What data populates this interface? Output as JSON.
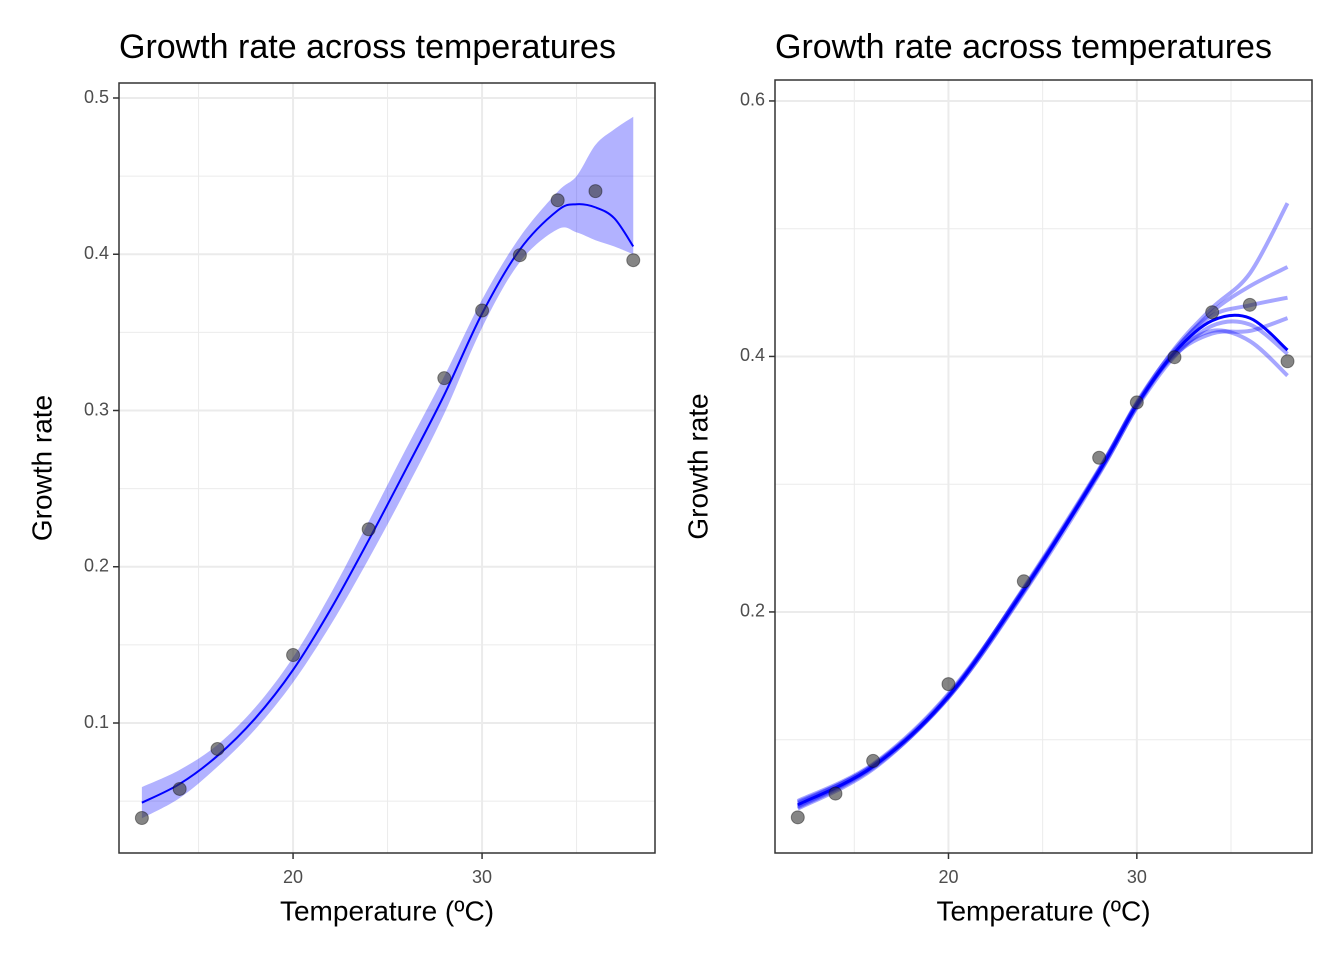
{
  "chart_data": [
    {
      "type": "line",
      "title": "Growth rate across temperatures",
      "xlabel": "Temperature (ºC)",
      "ylabel": "Growth rate",
      "xlim": [
        10.79,
        39.15
      ],
      "ylim": [
        0.0168,
        0.5096
      ],
      "xticks": [
        20,
        30
      ],
      "yticks": [
        0.1,
        0.2,
        0.3,
        0.4,
        0.5
      ],
      "grid": true,
      "points": {
        "color": "#333333",
        "x": [
          12,
          14,
          16,
          20,
          24,
          28,
          30,
          32,
          34,
          36,
          38
        ],
        "y": [
          0.0392,
          0.0578,
          0.0834,
          0.1435,
          0.224,
          0.3207,
          0.364,
          0.3994,
          0.4346,
          0.4404,
          0.3962
        ]
      },
      "fit": {
        "color": "#0000ff",
        "x": [
          12,
          14,
          16,
          18,
          20,
          22,
          24,
          26,
          28,
          30,
          32,
          34,
          35,
          36,
          37,
          38
        ],
        "values": [
          0.049,
          0.061,
          0.079,
          0.103,
          0.134,
          0.173,
          0.217,
          0.263,
          0.31,
          0.362,
          0.403,
          0.428,
          0.432,
          0.43,
          0.423,
          0.405
        ],
        "lower": [
          0.039,
          0.052,
          0.072,
          0.096,
          0.126,
          0.163,
          0.205,
          0.25,
          0.298,
          0.353,
          0.395,
          0.416,
          0.414,
          0.409,
          0.405,
          0.4
        ],
        "upper": [
          0.059,
          0.07,
          0.086,
          0.11,
          0.142,
          0.183,
          0.229,
          0.276,
          0.322,
          0.371,
          0.411,
          0.44,
          0.45,
          0.47,
          0.48,
          0.488
        ]
      }
    },
    {
      "type": "line",
      "title": "Growth rate across temperatures",
      "xlabel": "Temperature (ºC)",
      "ylabel": "Growth rate",
      "xlim": [
        10.79,
        39.3
      ],
      "ylim": [
        0.0113,
        0.6164
      ],
      "xticks": [
        20,
        30
      ],
      "yticks": [
        0.2,
        0.4,
        0.6
      ],
      "grid": true,
      "points": {
        "color": "#333333",
        "x": [
          12,
          14,
          16,
          20,
          24,
          28,
          30,
          32,
          34,
          36,
          38
        ],
        "y": [
          0.0392,
          0.0578,
          0.0834,
          0.1435,
          0.224,
          0.3207,
          0.364,
          0.3994,
          0.4346,
          0.4404,
          0.3962
        ]
      },
      "fit": {
        "color": "#0000ff",
        "x": [
          12,
          16,
          20,
          24,
          28,
          30,
          32,
          34,
          36,
          38
        ],
        "values": [
          0.049,
          0.079,
          0.134,
          0.217,
          0.31,
          0.362,
          0.403,
          0.428,
          0.43,
          0.405
        ]
      },
      "draws": {
        "color": "#0000ff",
        "x": [
          12,
          16,
          20,
          24,
          28,
          30,
          32,
          34,
          36,
          38
        ],
        "values": [
          [
            0.047,
            0.078,
            0.133,
            0.216,
            0.311,
            0.364,
            0.405,
            0.432,
            0.44,
            0.446
          ],
          [
            0.051,
            0.08,
            0.135,
            0.218,
            0.309,
            0.36,
            0.4,
            0.424,
            0.425,
            0.402
          ],
          [
            0.048,
            0.079,
            0.134,
            0.219,
            0.312,
            0.363,
            0.402,
            0.42,
            0.412,
            0.385
          ],
          [
            0.05,
            0.08,
            0.133,
            0.215,
            0.308,
            0.361,
            0.404,
            0.435,
            0.455,
            0.47
          ],
          [
            0.046,
            0.077,
            0.134,
            0.217,
            0.31,
            0.362,
            0.401,
            0.418,
            0.42,
            0.43
          ],
          [
            0.052,
            0.081,
            0.136,
            0.218,
            0.311,
            0.363,
            0.406,
            0.438,
            0.465,
            0.52
          ]
        ]
      }
    }
  ]
}
